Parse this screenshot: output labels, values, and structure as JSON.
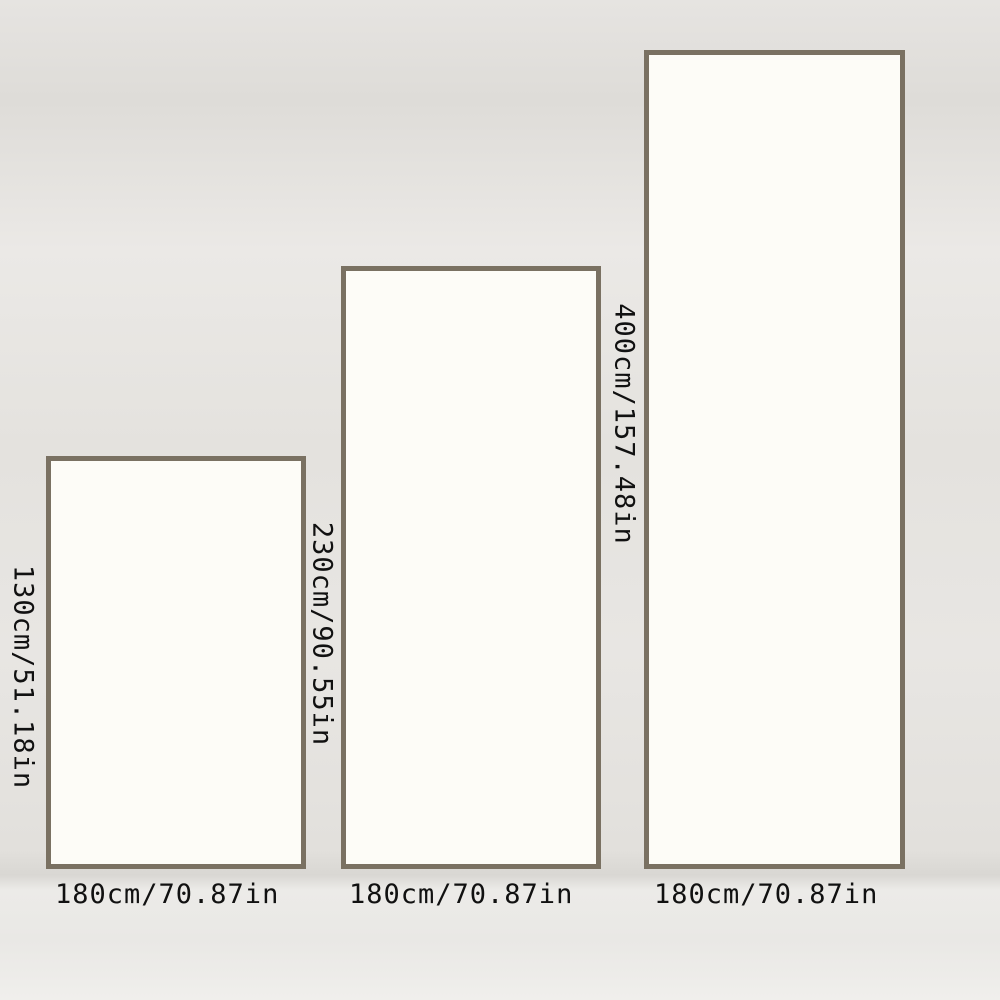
{
  "sizes": [
    {
      "height_label": "130cm/51.18in",
      "width_label": "180cm/70.87in"
    },
    {
      "height_label": "230cm/90.55in",
      "width_label": "180cm/70.87in"
    },
    {
      "height_label": "400cm/157.48in",
      "width_label": "180cm/70.87in"
    }
  ],
  "colors": {
    "frame": "#7a7162",
    "fill": "#fdfcf7"
  }
}
